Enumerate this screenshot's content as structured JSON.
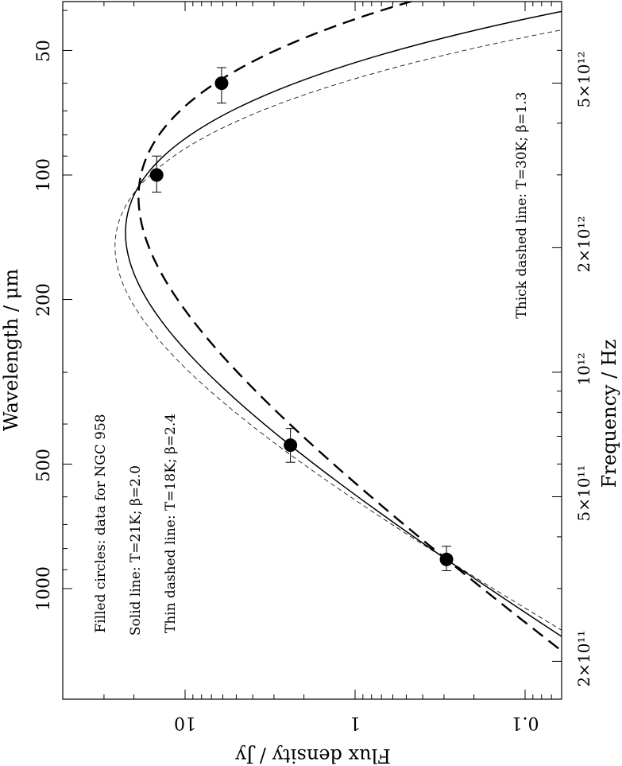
{
  "chart_data": {
    "type": "line",
    "orientation": "rotated-90",
    "x_axis": {
      "label": "Flux density / Jy",
      "scale": "log",
      "direction": "reversed",
      "ticks": [
        "10",
        "1",
        "0.1"
      ],
      "tick_values": [
        10,
        1,
        0.1
      ],
      "range": [
        38,
        0.068
      ]
    },
    "y_axis_left": {
      "label": "Wavelength / μm",
      "scale": "log",
      "ticks": [
        "50",
        "100",
        "200",
        "500",
        "1000"
      ],
      "tick_values": [
        50,
        100,
        200,
        500,
        1000
      ],
      "range": [
        37,
        2000
      ]
    },
    "y_axis_right": {
      "label": "Frequency / Hz",
      "scale": "log",
      "ticks": [
        "5×10¹²",
        "2×10¹²",
        "10¹²",
        "5×10¹¹",
        "2×10¹¹"
      ],
      "tick_values": [
        5000000000000.0,
        2000000000000.0,
        1000000000000.0,
        500000000000.0,
        200000000000.0
      ]
    },
    "annotations": [
      "Filled circles: data for NGC 958",
      "Solid line: T=21K; β=2.0",
      "Thin dashed line: T=18K; β=2.4",
      "Thick dashed line: T=30K; β=1.3"
    ],
    "points": [
      {
        "wavelength_um": 60,
        "flux_jy": 6.1,
        "wl_err": [
          55,
          67
        ]
      },
      {
        "wavelength_um": 100,
        "flux_jy": 14.7,
        "wl_err": [
          90,
          110
        ]
      },
      {
        "wavelength_um": 450,
        "flux_jy": 2.4,
        "wl_err": [
          410,
          495
        ]
      },
      {
        "wavelength_um": 850,
        "flux_jy": 0.29,
        "wl_err": [
          790,
          905
        ]
      }
    ],
    "series": [
      {
        "name": "Solid line",
        "T_K": 21,
        "beta": 2.0,
        "style": "solid"
      },
      {
        "name": "Thin dashed line",
        "T_K": 18,
        "beta": 2.4,
        "style": "thin-dashed"
      },
      {
        "name": "Thick dashed line",
        "T_K": 30,
        "beta": 1.3,
        "style": "thick-dashed"
      }
    ],
    "grid": false,
    "legend": "none"
  }
}
